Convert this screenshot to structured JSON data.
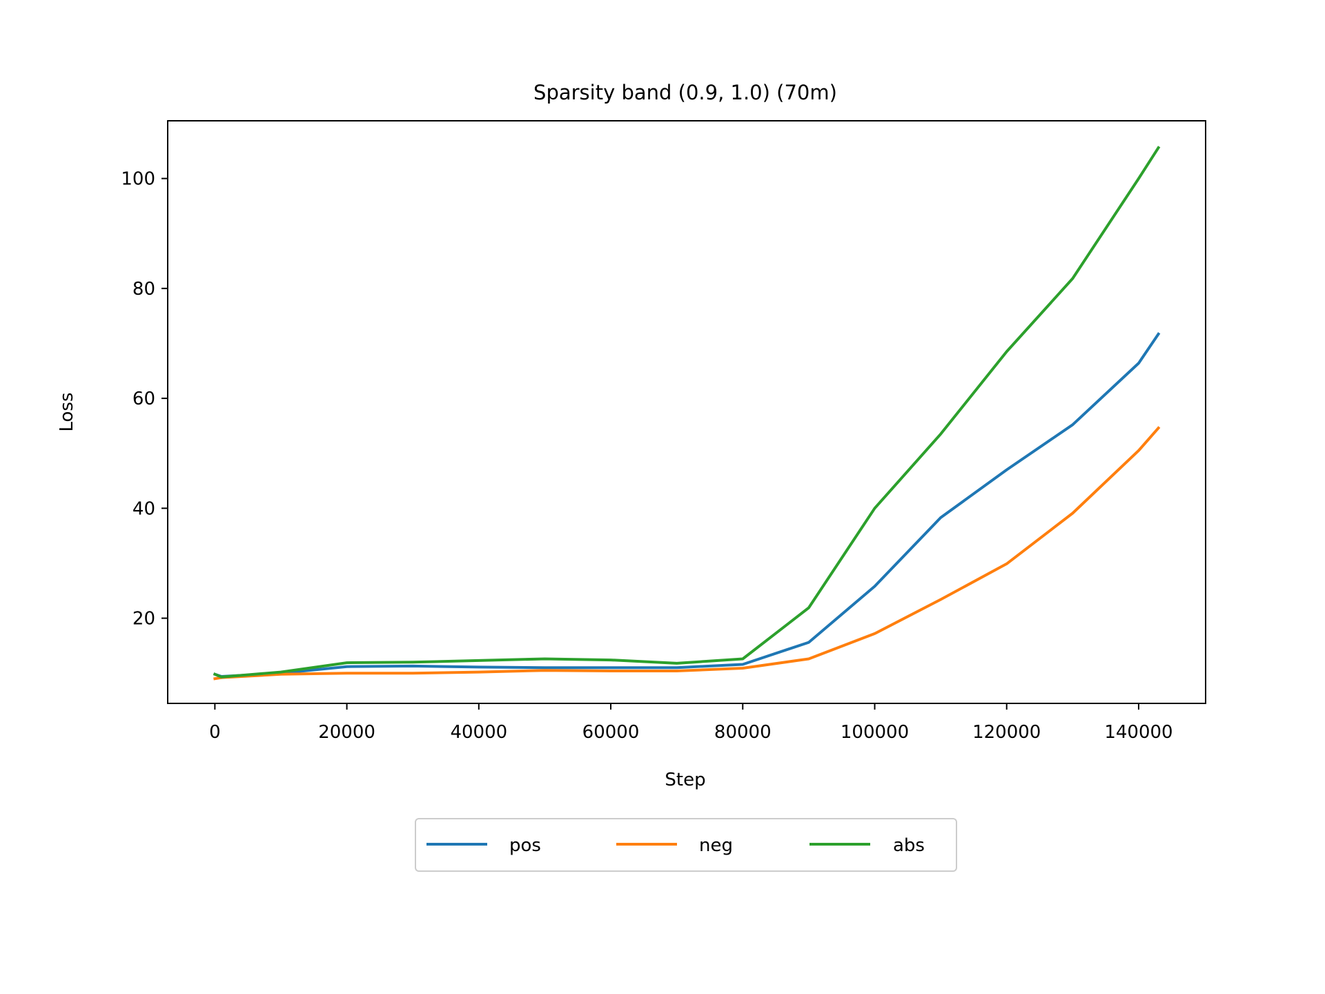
{
  "chart_data": {
    "type": "line",
    "title": "Sparsity band (0.9, 1.0) (70m)",
    "xlabel": "Step",
    "ylabel": "Loss",
    "xlim": [
      -7150,
      150150
    ],
    "ylim": [
      4.5,
      110.5
    ],
    "xticks": [
      0,
      20000,
      40000,
      60000,
      80000,
      100000,
      120000,
      140000
    ],
    "yticks": [
      20,
      40,
      60,
      80,
      100
    ],
    "grid": false,
    "legend_position": "below",
    "x": [
      0,
      1000,
      10000,
      20000,
      30000,
      40000,
      50000,
      60000,
      70000,
      80000,
      90000,
      100000,
      110000,
      120000,
      130000,
      140000,
      143000
    ],
    "series": [
      {
        "name": "pos",
        "color": "#1f77b4",
        "values": [
          9.8,
          9.4,
          10.0,
          11.2,
          11.3,
          11.1,
          11.0,
          11.0,
          11.0,
          11.6,
          15.6,
          25.8,
          38.3,
          47.0,
          55.2,
          66.4,
          71.7
        ]
      },
      {
        "name": "neg",
        "color": "#ff7f0e",
        "values": [
          9.0,
          9.2,
          9.8,
          10.0,
          10.0,
          10.2,
          10.5,
          10.4,
          10.4,
          10.9,
          12.6,
          17.2,
          23.4,
          29.9,
          39.1,
          50.5,
          54.6
        ]
      },
      {
        "name": "abs",
        "color": "#2ca02c",
        "values": [
          9.8,
          9.3,
          10.2,
          11.9,
          12.0,
          12.3,
          12.6,
          12.4,
          11.8,
          12.6,
          21.9,
          40.0,
          53.5,
          68.5,
          81.8,
          100.0,
          105.6
        ]
      }
    ]
  }
}
